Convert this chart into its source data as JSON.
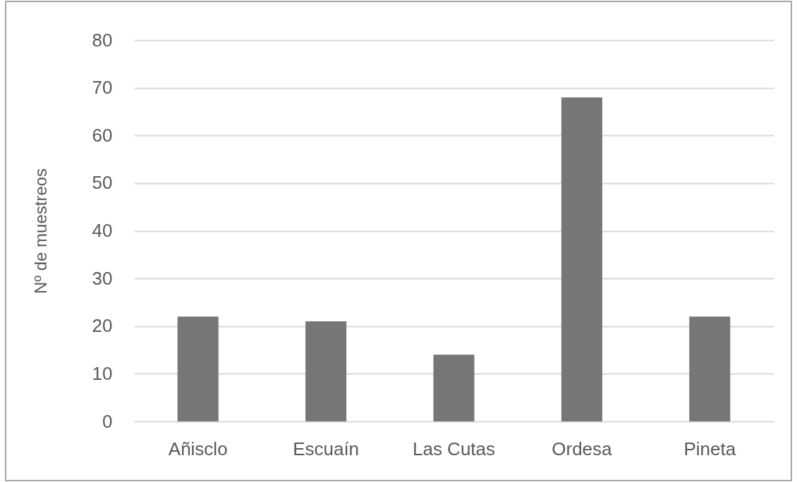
{
  "chart_data": {
    "type": "bar",
    "ylabel": "Nº de muestreos",
    "categories": [
      "Añisclo",
      "Escuaín",
      "Las Cutas",
      "Ordesa",
      "Pineta"
    ],
    "values": [
      22,
      21,
      14,
      68,
      22
    ],
    "color": "#767676",
    "ylim": [
      0,
      80
    ],
    "yticks": [
      0,
      10,
      20,
      30,
      40,
      50,
      60,
      70,
      80
    ],
    "grid": "y"
  }
}
